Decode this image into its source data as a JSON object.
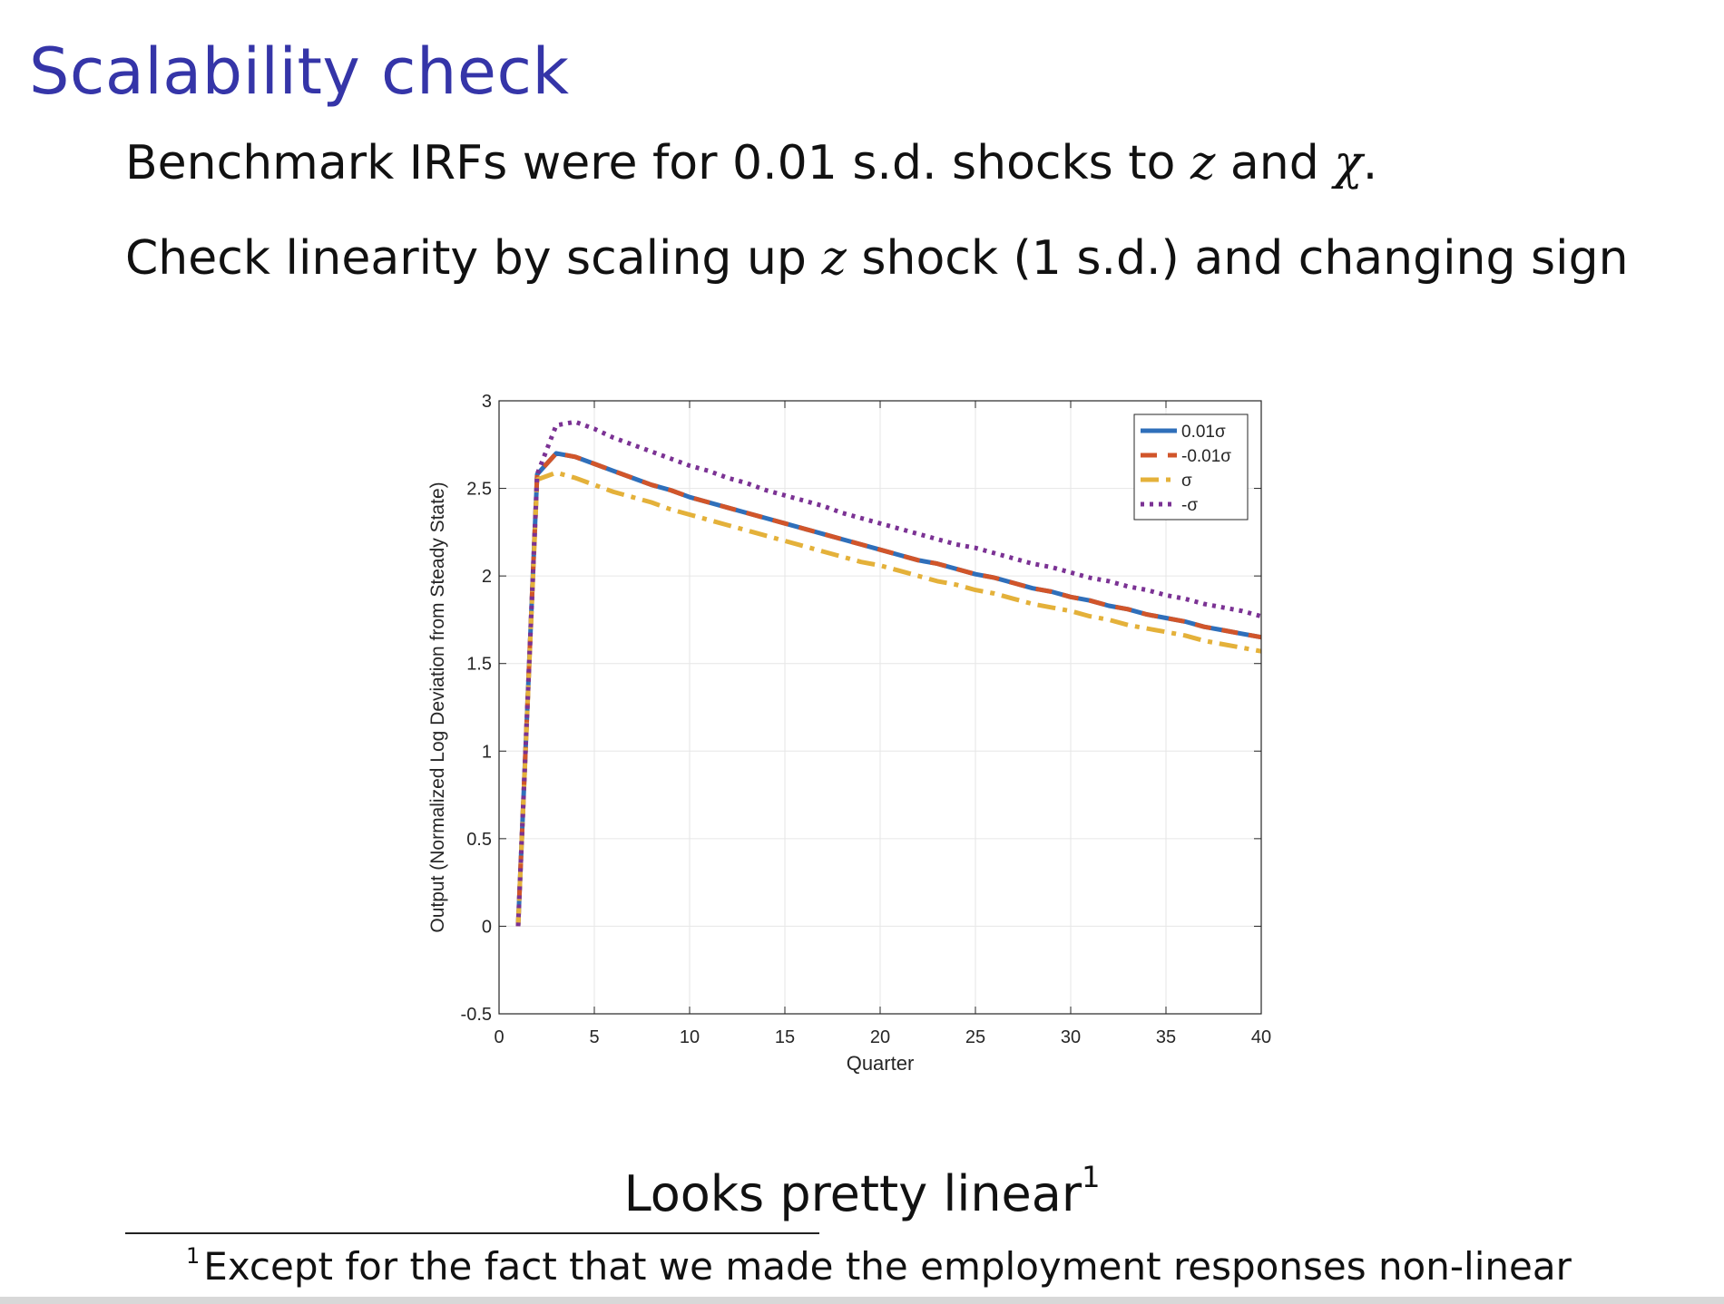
{
  "slide": {
    "title": "Scalability check",
    "bullet1": {
      "before": "Benchmark IRFs were for 0.01 s.d. shocks to ",
      "var1": "z",
      "mid": " and ",
      "var2": "χ",
      "after": "."
    },
    "bullet2": {
      "before": "Check linearity by scaling up ",
      "var1": "z",
      "after": " shock (1 s.d.) and changing sign"
    },
    "conclusion": "Looks pretty linear",
    "conclusion_mark": "1",
    "footnote_mark": "1",
    "footnote": "Except for the fact that we made the employment responses non-linear"
  },
  "chart_data": {
    "type": "line",
    "xlabel": "Quarter",
    "ylabel": "Output (Normalized Log Deviation from Steady State)",
    "xlim": [
      0,
      40
    ],
    "ylim": [
      -0.5,
      3
    ],
    "xticks": [
      0,
      5,
      10,
      15,
      20,
      25,
      30,
      35,
      40
    ],
    "yticks": [
      -0.5,
      0,
      0.5,
      1,
      1.5,
      2,
      2.5,
      3
    ],
    "grid": true,
    "legend_position": "top-right",
    "series": [
      {
        "name": "0.01σ",
        "color": "#2f6fba",
        "style": "solid",
        "x": [
          1,
          2,
          3,
          4,
          5,
          6,
          7,
          8,
          9,
          10,
          11,
          12,
          13,
          14,
          15,
          16,
          17,
          18,
          19,
          20,
          21,
          22,
          23,
          24,
          25,
          26,
          27,
          28,
          29,
          30,
          31,
          32,
          33,
          34,
          35,
          36,
          37,
          38,
          39,
          40
        ],
        "values": [
          0,
          2.58,
          2.7,
          2.68,
          2.64,
          2.6,
          2.56,
          2.52,
          2.49,
          2.45,
          2.42,
          2.39,
          2.36,
          2.33,
          2.3,
          2.27,
          2.24,
          2.21,
          2.18,
          2.15,
          2.12,
          2.09,
          2.07,
          2.04,
          2.01,
          1.99,
          1.96,
          1.93,
          1.91,
          1.88,
          1.86,
          1.83,
          1.81,
          1.78,
          1.76,
          1.74,
          1.71,
          1.69,
          1.67,
          1.65
        ]
      },
      {
        "name": "-0.01σ",
        "color": "#d1552a",
        "style": "dashed",
        "x": [
          1,
          2,
          3,
          4,
          5,
          6,
          7,
          8,
          9,
          10,
          11,
          12,
          13,
          14,
          15,
          16,
          17,
          18,
          19,
          20,
          21,
          22,
          23,
          24,
          25,
          26,
          27,
          28,
          29,
          30,
          31,
          32,
          33,
          34,
          35,
          36,
          37,
          38,
          39,
          40
        ],
        "values": [
          0,
          2.58,
          2.7,
          2.68,
          2.64,
          2.6,
          2.56,
          2.52,
          2.49,
          2.45,
          2.42,
          2.39,
          2.36,
          2.33,
          2.3,
          2.27,
          2.24,
          2.21,
          2.18,
          2.15,
          2.12,
          2.09,
          2.07,
          2.04,
          2.01,
          1.99,
          1.96,
          1.93,
          1.91,
          1.88,
          1.86,
          1.83,
          1.81,
          1.78,
          1.76,
          1.74,
          1.71,
          1.69,
          1.67,
          1.65
        ]
      },
      {
        "name": "σ",
        "color": "#e4b13a",
        "style": "dashdot",
        "x": [
          1,
          2,
          3,
          4,
          5,
          6,
          7,
          8,
          9,
          10,
          11,
          12,
          13,
          14,
          15,
          16,
          17,
          18,
          19,
          20,
          21,
          22,
          23,
          24,
          25,
          26,
          27,
          28,
          29,
          30,
          31,
          32,
          33,
          34,
          35,
          36,
          37,
          38,
          39,
          40
        ],
        "values": [
          0,
          2.55,
          2.59,
          2.56,
          2.52,
          2.48,
          2.45,
          2.42,
          2.38,
          2.35,
          2.32,
          2.29,
          2.26,
          2.23,
          2.2,
          2.17,
          2.14,
          2.11,
          2.08,
          2.06,
          2.03,
          2.0,
          1.97,
          1.95,
          1.92,
          1.9,
          1.87,
          1.84,
          1.82,
          1.8,
          1.77,
          1.75,
          1.72,
          1.7,
          1.68,
          1.66,
          1.63,
          1.61,
          1.59,
          1.57
        ]
      },
      {
        "name": "-σ",
        "color": "#7b3294",
        "style": "dotted",
        "x": [
          1,
          2,
          3,
          4,
          5,
          6,
          7,
          8,
          9,
          10,
          11,
          12,
          13,
          14,
          15,
          16,
          17,
          18,
          19,
          20,
          21,
          22,
          23,
          24,
          25,
          26,
          27,
          28,
          29,
          30,
          31,
          32,
          33,
          34,
          35,
          36,
          37,
          38,
          39,
          40
        ],
        "values": [
          0,
          2.58,
          2.86,
          2.88,
          2.84,
          2.79,
          2.75,
          2.71,
          2.67,
          2.63,
          2.6,
          2.56,
          2.53,
          2.49,
          2.46,
          2.43,
          2.4,
          2.36,
          2.33,
          2.3,
          2.27,
          2.24,
          2.21,
          2.18,
          2.16,
          2.13,
          2.1,
          2.07,
          2.05,
          2.02,
          1.99,
          1.97,
          1.94,
          1.92,
          1.89,
          1.87,
          1.84,
          1.82,
          1.8,
          1.77
        ]
      }
    ]
  }
}
